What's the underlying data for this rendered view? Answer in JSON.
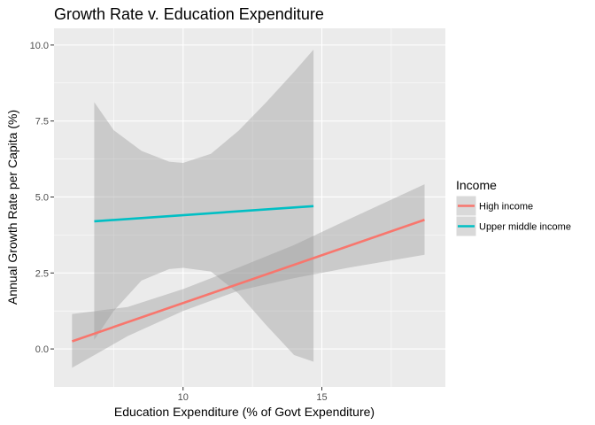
{
  "chart_data": {
    "type": "line",
    "title": "Growth Rate v. Education Expenditure",
    "xlabel": "Education Expenditure (% of Govt Expenditure)",
    "ylabel": "Annual Growth Rate per Capita (%)",
    "xlim": [
      5.35,
      19.45
    ],
    "ylim": [
      -1.25,
      10.55
    ],
    "x_ticks": [
      10,
      15
    ],
    "x_minor_ticks": [
      7.5,
      12.5,
      17.5
    ],
    "y_ticks": [
      0,
      2.5,
      5,
      7.5,
      10
    ],
    "y_tick_labels": [
      "0.0",
      "2.5",
      "5.0",
      "7.5",
      "10.0"
    ],
    "y_minor_ticks": [
      1.25,
      3.75,
      6.25,
      8.75
    ],
    "grid": true,
    "legend": {
      "title": "Income",
      "placement": "right"
    },
    "series": [
      {
        "name": "High income",
        "color": "#F8766D",
        "x": [
          6.0,
          18.7
        ],
        "y": [
          0.25,
          4.25
        ],
        "band_x": [
          6.0,
          8.0,
          10.0,
          12.0,
          14.0,
          16.0,
          18.7
        ],
        "band_lower": [
          -0.62,
          0.42,
          1.25,
          1.92,
          2.33,
          2.68,
          3.1
        ],
        "band_upper": [
          1.15,
          1.38,
          1.97,
          2.68,
          3.42,
          4.28,
          5.42
        ]
      },
      {
        "name": "Upper middle income",
        "color": "#00BFC4",
        "x": [
          6.8,
          14.7
        ],
        "y": [
          4.2,
          4.7
        ],
        "band_x": [
          6.8,
          7.5,
          8.5,
          9.5,
          10.0,
          11.0,
          12.0,
          13.0,
          14.0,
          14.7
        ],
        "band_lower": [
          0.3,
          1.25,
          2.25,
          2.63,
          2.67,
          2.55,
          1.82,
          0.78,
          -0.2,
          -0.42
        ],
        "band_upper": [
          8.12,
          7.2,
          6.52,
          6.16,
          6.12,
          6.42,
          7.18,
          8.12,
          9.12,
          9.85
        ]
      }
    ]
  }
}
